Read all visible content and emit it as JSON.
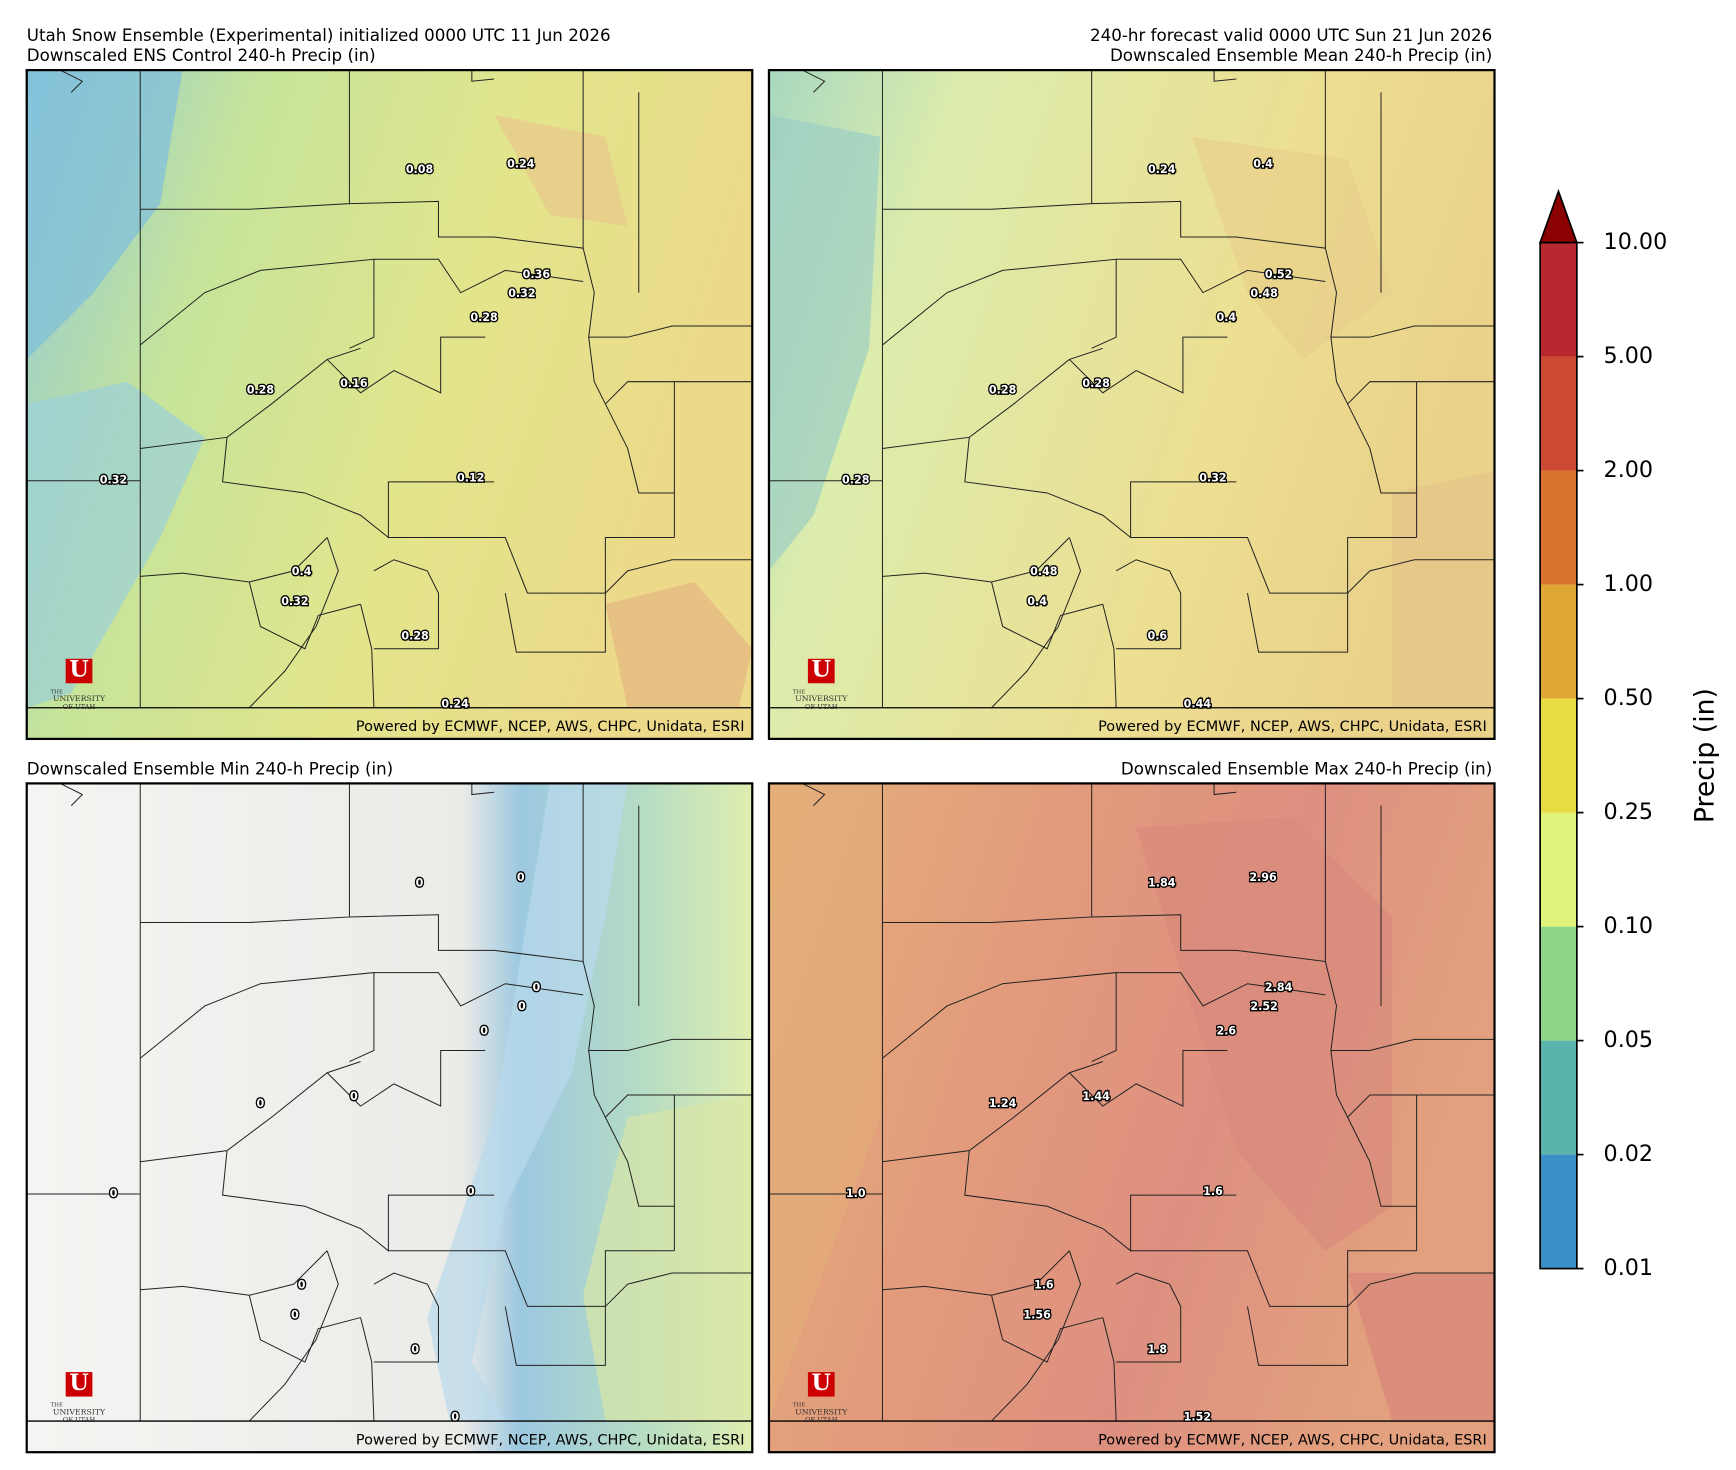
{
  "panels": [
    {
      "titles": [
        "Utah Snow Ensemble (Experimental) initialized 0000 UTC 11 Jun 2026",
        "Downscaled ENS Control 240-h Precip (in)"
      ],
      "labels": [
        "0.08",
        "0.24",
        "0.36",
        "0.32",
        "0.28",
        "0.28",
        "0.16",
        "0.32",
        "0.12",
        "0.4",
        "0.32",
        "0.28",
        "0.24"
      ]
    },
    {
      "titles": [
        "240-hr forecast valid 0000 UTC Sun 21 Jun 2026",
        "Downscaled Ensemble Mean 240-h Precip (in)"
      ],
      "labels": [
        "0.24",
        "0.4",
        "0.52",
        "0.48",
        "0.4",
        "0.28",
        "0.28",
        "0.28",
        "0.32",
        "0.48",
        "0.4",
        "0.6",
        "0.44"
      ]
    },
    {
      "titles": [
        "Downscaled Ensemble Min 240-h Precip (in)"
      ],
      "labels": [
        "0",
        "0",
        "0",
        "0",
        "0",
        "0",
        "0",
        "0",
        "0",
        "0",
        "0",
        "0",
        "0"
      ]
    },
    {
      "titles": [
        "Downscaled Ensemble Max 240-h Precip (in)"
      ],
      "labels": [
        "1.84",
        "2.96",
        "2.84",
        "2.52",
        "2.6",
        "1.24",
        "1.44",
        "1.0",
        "1.6",
        "1.6",
        "1.56",
        "1.8",
        "1.52"
      ]
    }
  ],
  "credit": "Powered by ECMWF, NCEP, AWS, CHPC, Unidata, ESRI",
  "logo": {
    "mark": "U",
    "line1": "THE",
    "line2": "UNIVERSITY",
    "line3": "OF UTAH"
  },
  "colorbar": {
    "label": "Precip (in)",
    "ticks": [
      "0.01",
      "0.02",
      "0.05",
      "0.10",
      "0.25",
      "0.50",
      "1.00",
      "2.00",
      "5.00",
      "10.00"
    ],
    "colors": [
      "#3a8fc6",
      "#5ab4ac",
      "#90d68a",
      "#dff27a",
      "#e8dc44",
      "#e0a833",
      "#d8722e",
      "#cc4a33",
      "#b8282e"
    ],
    "extend_color": "#8b0000"
  }
}
